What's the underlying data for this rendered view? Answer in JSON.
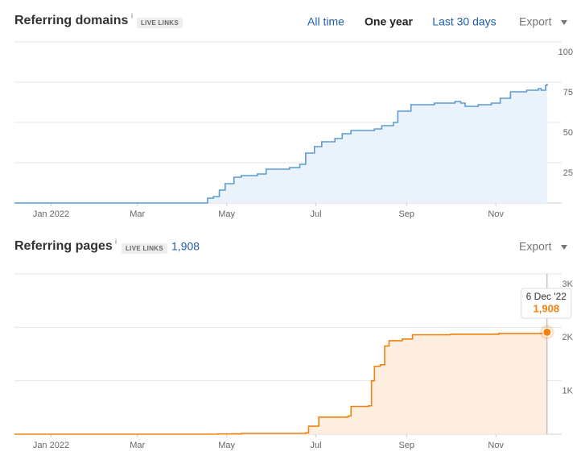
{
  "header1": {
    "title": "Referring domains",
    "info": "i",
    "badge": "LIVE LINKS",
    "buttons": [
      "All time",
      "One year",
      "Last 30 days"
    ],
    "export": "Export"
  },
  "header2": {
    "title": "Referring pages",
    "info": "i",
    "badge": "LIVE LINKS",
    "total": "1,908",
    "export": "Export"
  },
  "chart_data": [
    {
      "type": "area",
      "color": "#5a9bd4",
      "fill": "#eaf3fc",
      "series": [
        {
          "x": [
            -25,
            106,
            107,
            111,
            115,
            119,
            125,
            130,
            136,
            141,
            147,
            155,
            163,
            170,
            174,
            180,
            185,
            194,
            199,
            205,
            216,
            221,
            226,
            234,
            237,
            246,
            262,
            276,
            280,
            283,
            292,
            301,
            307,
            314,
            325,
            333,
            335,
            338,
            339
          ],
          "values": [
            0,
            0,
            3,
            4,
            8,
            12,
            16,
            17,
            17,
            18,
            21,
            21,
            22,
            24,
            31,
            35,
            38,
            40,
            43,
            45,
            45,
            46,
            48,
            50,
            57,
            61,
            62,
            63,
            62,
            60,
            61,
            62,
            65,
            69,
            70,
            71,
            70,
            73,
            74
          ]
        }
      ],
      "xlim": [
        -25,
        349
      ],
      "ylim": [
        0,
        100
      ],
      "xticks": [
        {
          "value": 0,
          "label": "Jan 2022"
        },
        {
          "value": 59,
          "label": "Mar"
        },
        {
          "value": 120,
          "label": "May"
        },
        {
          "value": 181,
          "label": "Jul"
        },
        {
          "value": 243,
          "label": "Sep"
        },
        {
          "value": 304,
          "label": "Nov"
        }
      ],
      "yticks": [
        25,
        50,
        75,
        100
      ],
      "grid": true
    },
    {
      "type": "area",
      "color": "#f0820f",
      "fill": "#fdeee0",
      "series": [
        {
          "x": [
            -25,
            114,
            130,
            174,
            176,
            183,
            203,
            205,
            217,
            219,
            221,
            225,
            228,
            231,
            240,
            247,
            273,
            306,
            339
          ],
          "values": [
            0,
            5,
            15,
            25,
            150,
            320,
            340,
            520,
            530,
            1000,
            1270,
            1300,
            1650,
            1750,
            1780,
            1860,
            1870,
            1885,
            1908
          ]
        }
      ],
      "xlim": [
        -25,
        349
      ],
      "ylim": [
        0,
        3000
      ],
      "xticks": [
        {
          "value": 0,
          "label": "Jan 2022"
        },
        {
          "value": 59,
          "label": "Mar"
        },
        {
          "value": 120,
          "label": "May"
        },
        {
          "value": 181,
          "label": "Jul"
        },
        {
          "value": 243,
          "label": "Sep"
        },
        {
          "value": 304,
          "label": "Nov"
        }
      ],
      "yticks": [
        {
          "value": 1000,
          "label": "1K"
        },
        {
          "value": 2000,
          "label": "2K"
        },
        {
          "value": 3000,
          "label": "3K"
        }
      ],
      "grid": true,
      "tooltip": {
        "date": "6 Dec '22",
        "value": "1,908"
      }
    }
  ]
}
